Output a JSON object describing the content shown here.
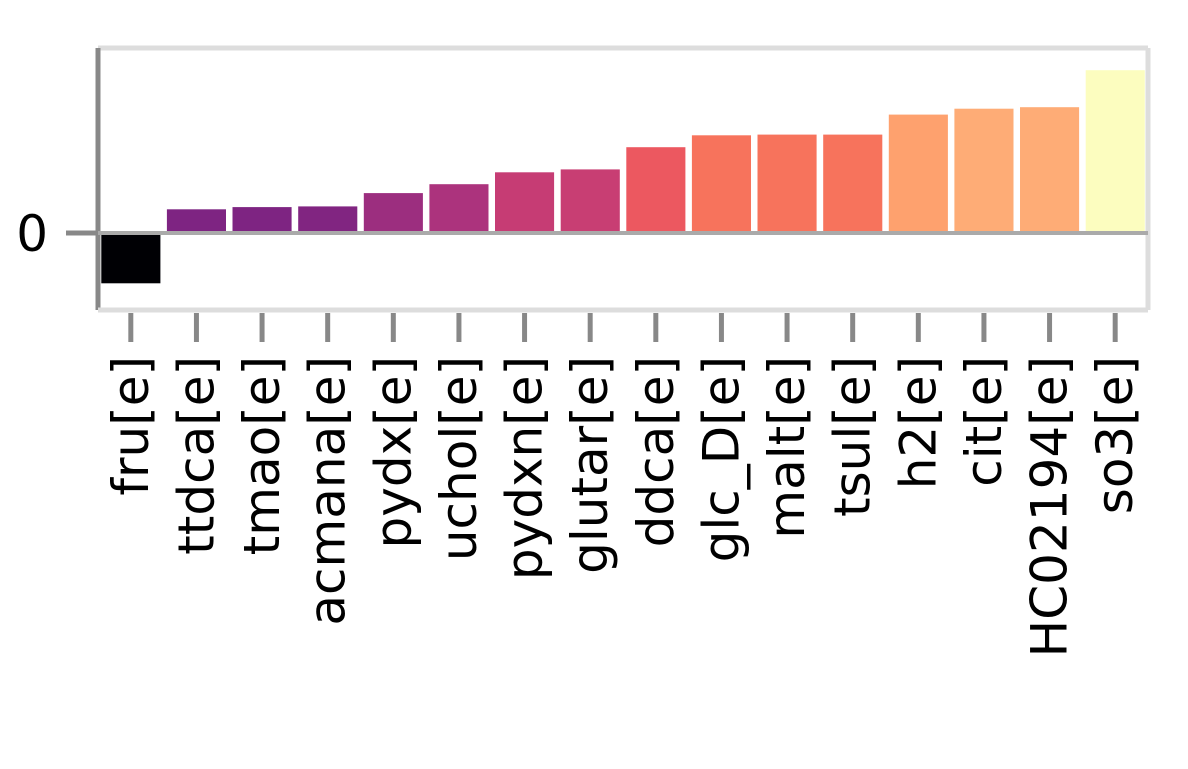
{
  "chart_data": {
    "type": "bar",
    "title": "",
    "xlabel": "",
    "ylabel": "",
    "categories": [
      "fru[e]",
      "ttdca[e]",
      "tmao[e]",
      "acmana[e]",
      "pydx[e]",
      "uchol[e]",
      "pydxn[e]",
      "glutar[e]",
      "ddca[e]",
      "glc_D[e]",
      "malt[e]",
      "tsul[e]",
      "h2[e]",
      "cit[e]",
      "HC02194[e]",
      "so3[e]"
    ],
    "values": [
      -0.34,
      0.16,
      0.175,
      0.18,
      0.27,
      0.33,
      0.41,
      0.43,
      0.58,
      0.66,
      0.665,
      0.665,
      0.8,
      0.84,
      0.85,
      1.1
    ],
    "colors": [
      "#000004",
      "#7e2482",
      "#7e2482",
      "#812581",
      "#9c2e7f",
      "#ac337d",
      "#c63c74",
      "#c83e73",
      "#ec5860",
      "#f7735c",
      "#f7735c",
      "#f7735c",
      "#fea16e",
      "#feac76",
      "#feac76",
      "#fcfdbf"
    ],
    "yticks": [
      0
    ],
    "ytick_labels": [
      "0"
    ],
    "ylim": [
      -0.52,
      1.25
    ],
    "grid": false,
    "legend": "none"
  }
}
